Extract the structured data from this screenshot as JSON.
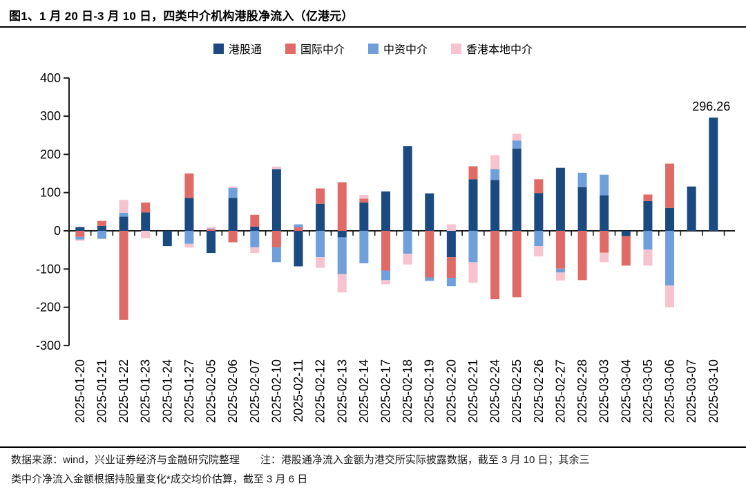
{
  "title": "图1、1 月 20 日-3 月 10 日，四类中介机构港股净流入（亿港元）",
  "footer": {
    "line1": "数据来源：wind，兴业证券经济与金融研究院整理　　注：港股通净流入金额为港交所实际披露数据，截至 3 月 10 日；其余三",
    "line2": "类中介净流入金额根据持股量变化*成交均价估算，截至 3 月 6 日"
  },
  "chart_data": {
    "type": "bar",
    "stacked": true,
    "unit": "亿港元",
    "title": "四类中介机构港股净流入（亿港元）",
    "legend_position": "top",
    "grid": false,
    "ylim": [
      -300,
      400
    ],
    "ytick_interval": 100,
    "categories": [
      "2025-01-20",
      "2025-01-21",
      "2025-01-22",
      "2025-01-23",
      "2025-01-24",
      "2025-01-27",
      "2025-02-05",
      "2025-02-06",
      "2025-02-07",
      "2025-02-10",
      "2025-02-11",
      "2025-02-12",
      "2025-02-13",
      "2025-02-14",
      "2025-02-17",
      "2025-02-18",
      "2025-02-19",
      "2025-02-20",
      "2025-02-21",
      "2025-02-24",
      "2025-02-25",
      "2025-02-26",
      "2025-02-27",
      "2025-02-28",
      "2025-03-03",
      "2025-03-04",
      "2025-03-05",
      "2025-03-06",
      "2025-03-07",
      "2025-03-10"
    ],
    "series": [
      {
        "name": "港股通",
        "color": "#1A4A7F",
        "values": [
          10,
          13,
          37,
          48,
          -40,
          86,
          -58,
          86,
          11,
          161,
          -93,
          71,
          -17,
          74,
          103,
          222,
          98,
          -69,
          135,
          133,
          215,
          99,
          165,
          114,
          93,
          -14,
          78,
          60,
          116,
          296.26
        ]
      },
      {
        "name": "国际中介",
        "color": "#E06A66",
        "values": [
          -16,
          13,
          -233,
          26,
          0,
          64,
          4,
          -30,
          31,
          -43,
          9,
          40,
          127,
          10,
          -104,
          0,
          -122,
          -54,
          34,
          -179,
          -174,
          36,
          -99,
          -129,
          -57,
          -77,
          17,
          116,
          0,
          0
        ]
      },
      {
        "name": "中资中介",
        "color": "#6FA0DC",
        "values": [
          -7,
          -21,
          10,
          0,
          0,
          -34,
          2,
          26,
          -43,
          -39,
          8,
          -69,
          -96,
          -85,
          -25,
          -60,
          -9,
          -22,
          -82,
          28,
          21,
          -40,
          -10,
          38,
          54,
          0,
          -49,
          -143,
          0,
          0
        ]
      },
      {
        "name": "香港本地中介",
        "color": "#F6C3CF",
        "values": [
          -3,
          0,
          34,
          -19,
          0,
          -10,
          4,
          4,
          -15,
          7,
          0,
          -28,
          -48,
          10,
          -11,
          -28,
          0,
          17,
          -54,
          37,
          18,
          -27,
          -21,
          0,
          -25,
          0,
          -42,
          -57,
          0,
          0
        ]
      }
    ],
    "annotations": [
      {
        "text": "296.26",
        "category": "2025-03-10",
        "value": 296.26
      }
    ]
  }
}
